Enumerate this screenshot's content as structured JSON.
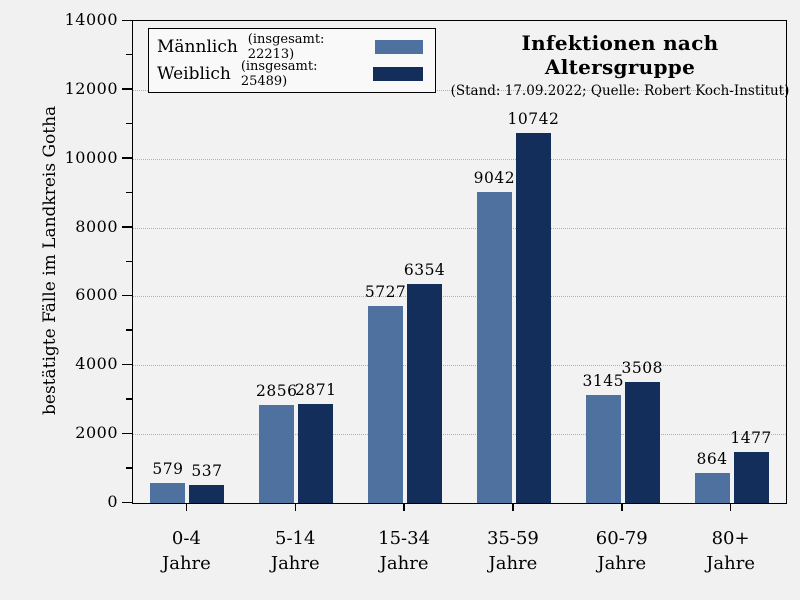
{
  "legend": {
    "items": [
      {
        "label": "Männlich",
        "detail": "(insgesamt: 22213)",
        "color": "#4f71a0"
      },
      {
        "label": "Weiblich",
        "detail": "(insgesamt: 25489)",
        "color": "#132e5a"
      }
    ]
  },
  "chart_data": {
    "type": "bar",
    "title": "Infektionen nach Altersgruppe",
    "subtitle": "(Stand: 17.09.2022; Quelle: Robert Koch-Institut)",
    "ylabel": "bestätigte Fälle im Landkreis Gotha",
    "xlabel": "",
    "categories": [
      "0-4",
      "5-14",
      "15-34",
      "35-59",
      "60-79",
      "80+"
    ],
    "category_unit": "Jahre",
    "series": [
      {
        "name": "Männlich",
        "total": 22213,
        "color": "#4f71a0",
        "values": [
          579,
          2856,
          5727,
          9042,
          3145,
          864
        ]
      },
      {
        "name": "Weiblich",
        "total": 25489,
        "color": "#132e5a",
        "values": [
          537,
          2871,
          6354,
          10742,
          3508,
          1477
        ]
      }
    ],
    "ylim": [
      0,
      14000
    ],
    "ytick_step": 2000,
    "minor_tick_step": 1000,
    "grid": "horizontal dotted lines at major ticks",
    "legend_position": "upper left"
  }
}
